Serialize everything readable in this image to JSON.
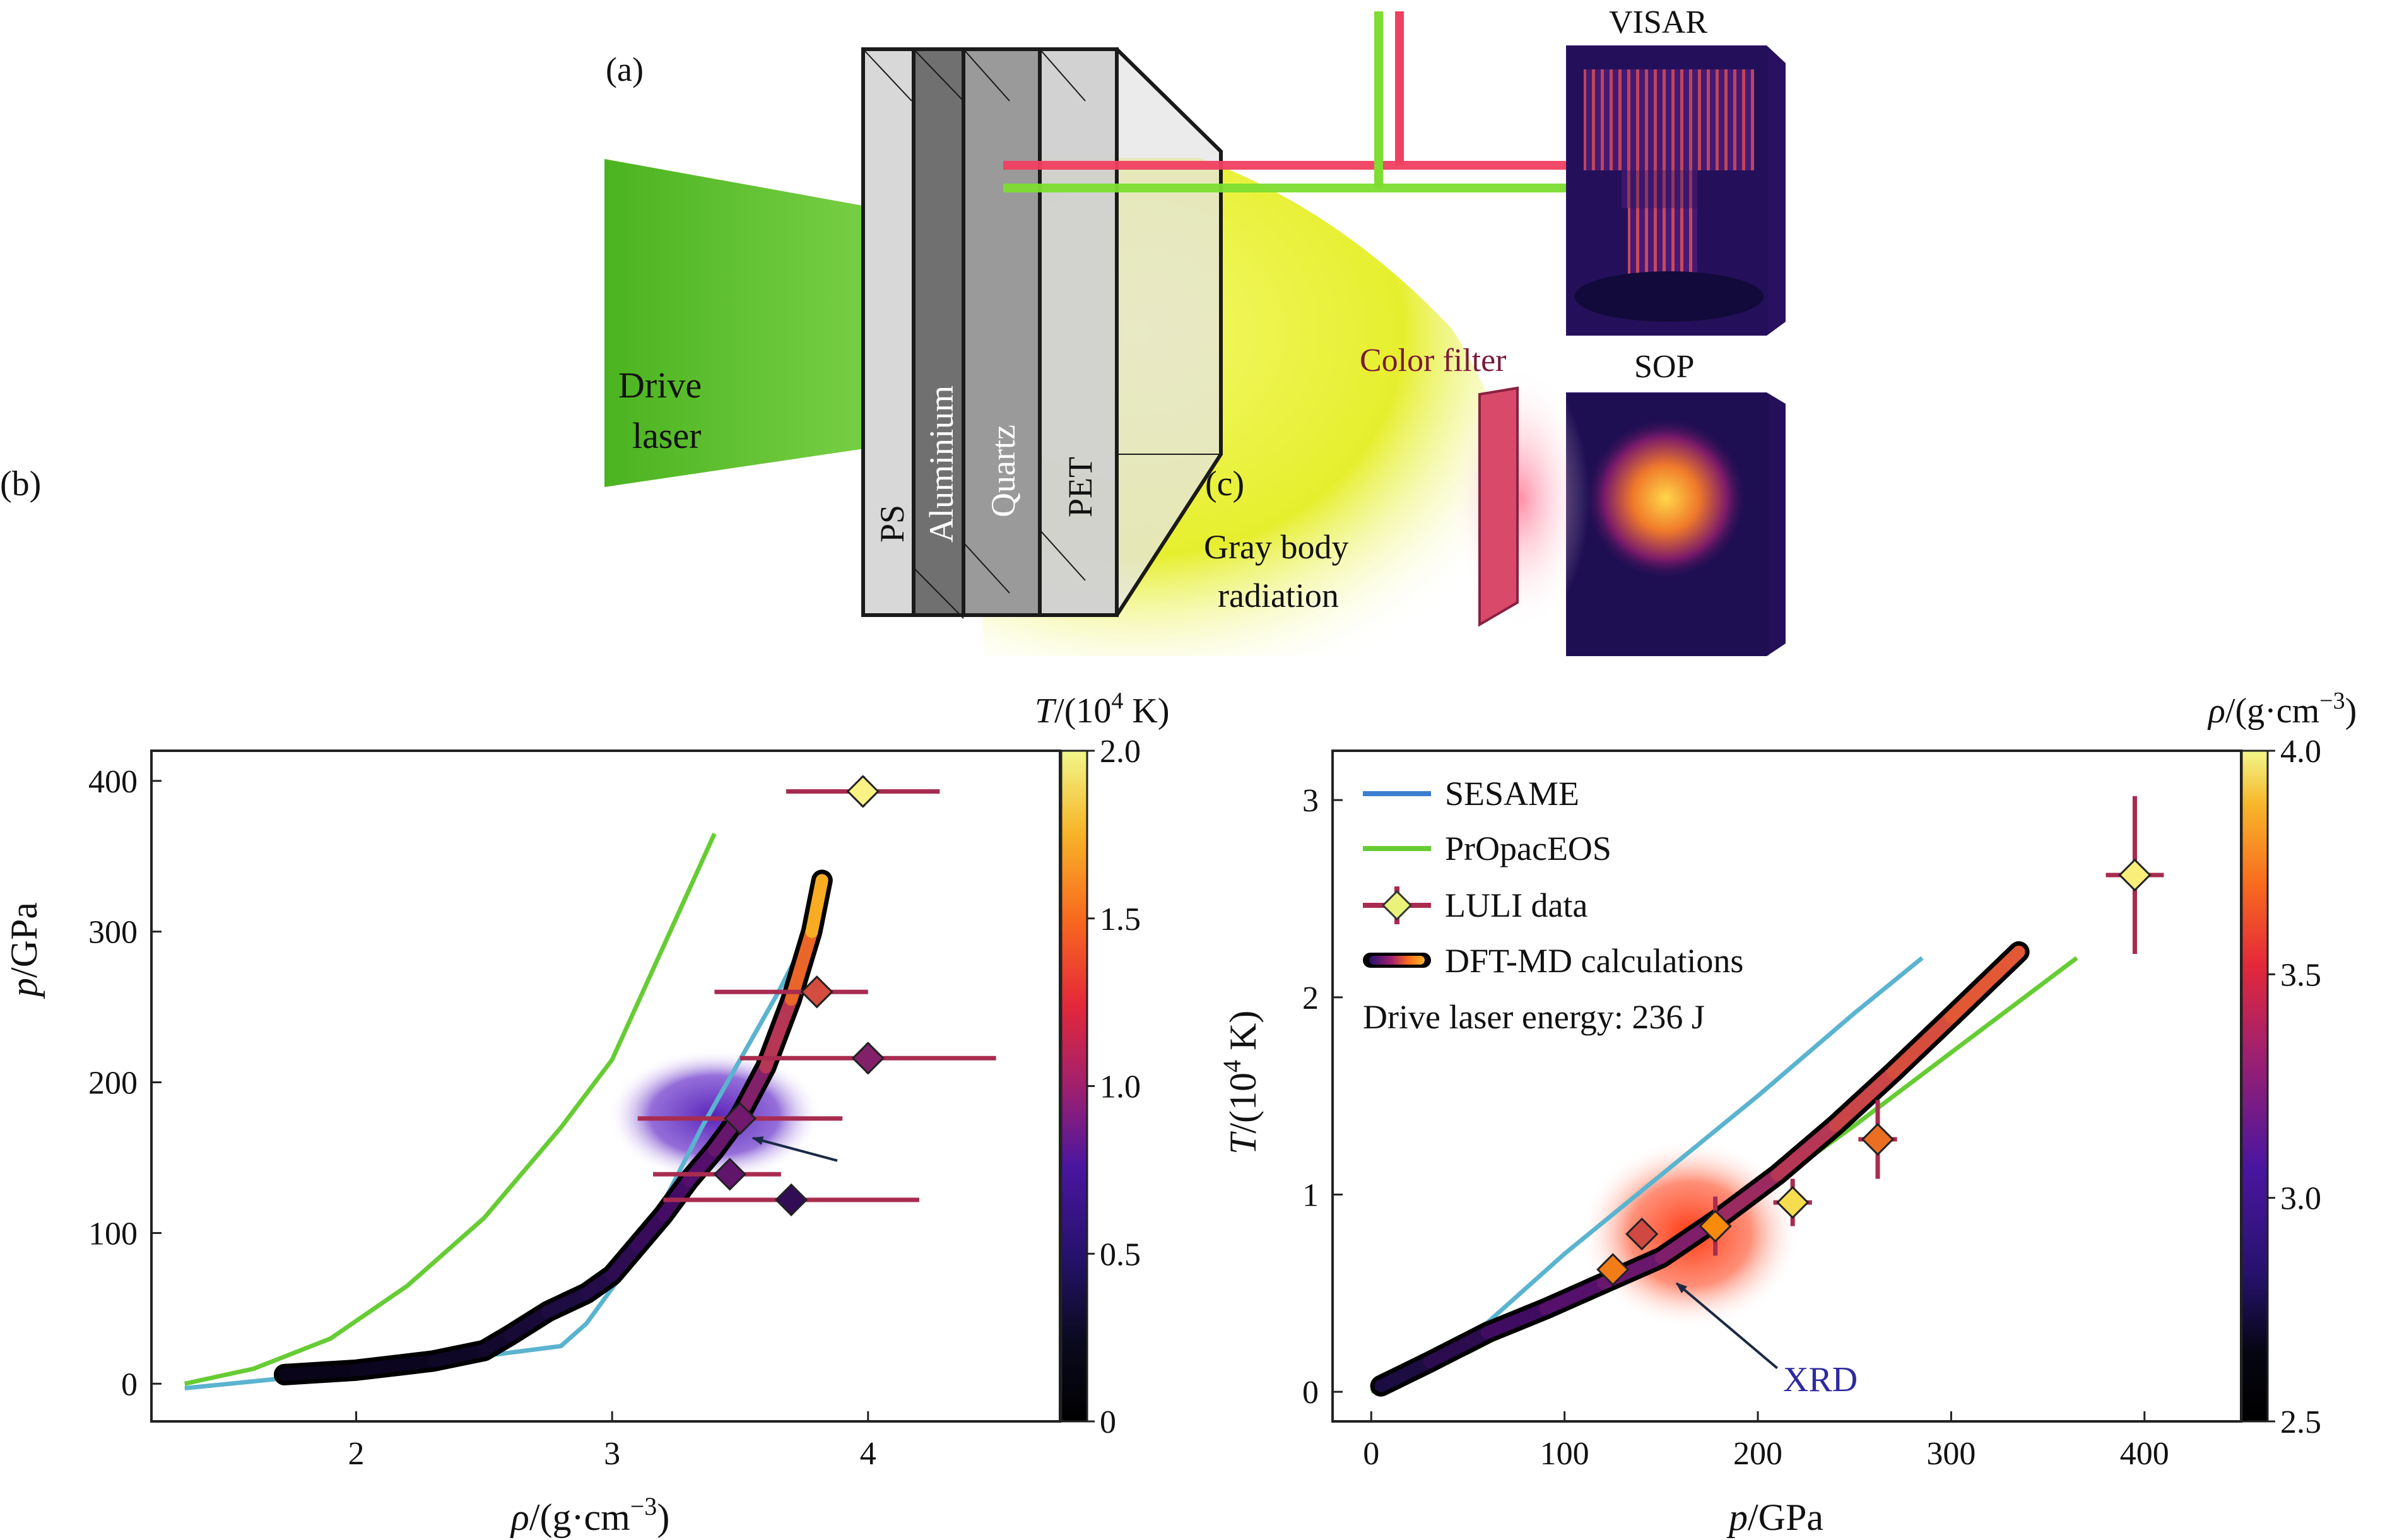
{
  "panel_a": {
    "label": "(a)",
    "drive_laser": [
      "Drive",
      "laser"
    ],
    "layers": [
      "PS",
      "Aluminium",
      "Quartz",
      "PET"
    ],
    "gray_body": [
      "Gray body",
      "radiation"
    ],
    "color_filter": "Color filter",
    "visar": "VISAR",
    "sop": "SOP"
  },
  "colors": {
    "sesame": "#5ab4cf",
    "propacEOS": "#66cc33",
    "luli_bar": "#a82c50",
    "dft_outline": "#000000",
    "drive_laser": "#5cbf2a",
    "gray_body": "#e9f23a",
    "visar_line_red": "#f04060",
    "visar_line_green": "#7ddd30"
  },
  "chart_data": [
    {
      "id": "b",
      "type": "line",
      "panel_label": "(b)",
      "xlabel_var": "ρ",
      "xlabel_unit": "/(g·cm",
      "xlabel_exp": "−3",
      "xlabel_close": ")",
      "ylabel_var": "p",
      "ylabel_unit": "/GPa",
      "xlim": [
        1.2,
        4.75
      ],
      "ylim": [
        -25,
        420
      ],
      "xticks": [
        2,
        3,
        4
      ],
      "yticks": [
        0,
        100,
        200,
        300,
        400
      ],
      "colorbar": {
        "label_var": "T",
        "label_unit": "/(10",
        "label_exp": "4",
        "label_close": " K)",
        "range": [
          0,
          2.0
        ],
        "ticks": [
          0,
          0.5,
          1.0,
          1.5,
          2.0
        ],
        "tick_labels": [
          "0",
          "0.5",
          "1.0",
          "1.5",
          "2.0"
        ]
      },
      "series": [
        {
          "key": "propac",
          "x": [
            1.33,
            1.6,
            1.9,
            2.2,
            2.5,
            2.8,
            3.0,
            3.2,
            3.4
          ],
          "y": [
            0,
            10,
            30,
            65,
            110,
            170,
            215,
            290,
            365
          ]
        },
        {
          "key": "sesame",
          "x": [
            1.33,
            1.8,
            2.3,
            2.8,
            2.9,
            3.05,
            3.2,
            3.35,
            3.5,
            3.65,
            3.8
          ],
          "y": [
            -3,
            5,
            14,
            25,
            40,
            75,
            120,
            170,
            215,
            260,
            310
          ]
        },
        {
          "key": "dft",
          "x": [
            1.72,
            2.0,
            2.3,
            2.5,
            2.6,
            2.75,
            2.9,
            3.0,
            3.1,
            3.2,
            3.3,
            3.4,
            3.5,
            3.6,
            3.7,
            3.78,
            3.82
          ],
          "y": [
            6,
            9,
            15,
            22,
            32,
            48,
            60,
            72,
            92,
            112,
            135,
            155,
            178,
            210,
            255,
            300,
            334
          ],
          "t": [
            0.1,
            0.12,
            0.15,
            0.18,
            0.22,
            0.28,
            0.33,
            0.38,
            0.45,
            0.52,
            0.6,
            0.72,
            0.85,
            1.05,
            1.35,
            1.65,
            1.85
          ]
        }
      ],
      "points": [
        {
          "x": 3.98,
          "y": 393,
          "xerr": [
            0.3,
            0.3
          ],
          "yerr": 10,
          "t": 1.95
        },
        {
          "x": 3.8,
          "y": 260,
          "xerr": [
            0.4,
            0.2
          ],
          "yerr": 0,
          "t": 1.35
        },
        {
          "x": 4.0,
          "y": 216,
          "xerr": [
            0.5,
            0.5
          ],
          "yerr": 10,
          "t": 0.95
        },
        {
          "x": 3.5,
          "y": 176,
          "xerr": [
            0.4,
            0.4
          ],
          "yerr": 0,
          "t": 0.85
        },
        {
          "x": 3.46,
          "y": 139,
          "xerr": [
            0.3,
            0.2
          ],
          "yerr": 0,
          "t": 0.75
        },
        {
          "x": 3.7,
          "y": 122,
          "xerr": [
            0.5,
            0.5
          ],
          "yerr": 0,
          "t": 0.45
        }
      ],
      "blob": {
        "x": 3.4,
        "y": 178
      },
      "arrow": {
        "from": [
          3.88,
          148
        ],
        "to": [
          3.55,
          163
        ]
      }
    },
    {
      "id": "c",
      "type": "line",
      "panel_label": "(c)",
      "xlabel_var": "p",
      "xlabel_unit": "/GPa",
      "ylabel_var": "T",
      "ylabel_unit": "/(10",
      "ylabel_exp": "4",
      "ylabel_close": " K)",
      "xlim": [
        -20,
        450
      ],
      "ylim": [
        -0.15,
        3.25
      ],
      "xticks": [
        0,
        100,
        200,
        300,
        400
      ],
      "yticks": [
        0,
        1,
        2,
        3
      ],
      "colorbar": {
        "label_var": "ρ",
        "label_unit": "/(g·cm",
        "label_exp": "−3",
        "label_close": ")",
        "range": [
          2.5,
          4.0
        ],
        "ticks": [
          2.5,
          3.0,
          3.5,
          4.0
        ],
        "tick_labels": [
          "2.5",
          "3.0",
          "3.5",
          "4.0"
        ]
      },
      "legend": {
        "position": "top-left",
        "entries": [
          {
            "key": "sesame",
            "label": "SESAME"
          },
          {
            "key": "propac",
            "label": "PrOpacEOS"
          },
          {
            "key": "luli",
            "label": "LULI data"
          },
          {
            "key": "dft",
            "label": "DFT-MD calculations"
          }
        ]
      },
      "annotation": "Drive laser energy: 236 J",
      "xrd_label": "XRD",
      "series": [
        {
          "key": "sesame",
          "x": [
            0,
            30,
            60,
            100,
            150,
            200,
            250,
            285
          ],
          "y": [
            0,
            0.15,
            0.35,
            0.7,
            1.1,
            1.5,
            1.92,
            2.2
          ]
        },
        {
          "key": "propac",
          "x": [
            0,
            50,
            100,
            150,
            200,
            250,
            300,
            365
          ],
          "y": [
            0,
            0.2,
            0.45,
            0.72,
            1.0,
            1.35,
            1.72,
            2.2
          ]
        },
        {
          "key": "dft",
          "x": [
            5,
            30,
            60,
            90,
            120,
            150,
            180,
            210,
            240,
            270,
            300,
            335
          ],
          "y": [
            0.03,
            0.15,
            0.3,
            0.42,
            0.55,
            0.68,
            0.88,
            1.1,
            1.35,
            1.62,
            1.9,
            2.23
          ],
          "r": [
            2.7,
            2.75,
            2.85,
            2.95,
            3.05,
            3.15,
            3.25,
            3.35,
            3.45,
            3.5,
            3.55,
            3.6
          ]
        }
      ],
      "points": [
        {
          "x": 395,
          "y": 2.62,
          "xerr": [
            15,
            15
          ],
          "yerr": 0.4,
          "r": 3.95
        },
        {
          "x": 262,
          "y": 1.28,
          "xerr": [
            10,
            10
          ],
          "yerr": 0.2,
          "r": 3.65
        },
        {
          "x": 218,
          "y": 0.96,
          "xerr": [
            10,
            10
          ],
          "yerr": 0.12,
          "r": 3.9
        },
        {
          "x": 178,
          "y": 0.84,
          "xerr": [
            0,
            0
          ],
          "yerr": 0.15,
          "r": 3.75
        },
        {
          "x": 140,
          "y": 0.8,
          "xerr": [
            0,
            0
          ],
          "yerr": 0,
          "r": 3.5
        },
        {
          "x": 125,
          "y": 0.62,
          "xerr": [
            0,
            0
          ],
          "yerr": 0,
          "r": 3.7
        }
      ],
      "blob": {
        "x": 165,
        "y": 0.8
      },
      "arrow": {
        "from": [
          210,
          0.12
        ],
        "to": [
          158,
          0.55
        ]
      }
    }
  ]
}
